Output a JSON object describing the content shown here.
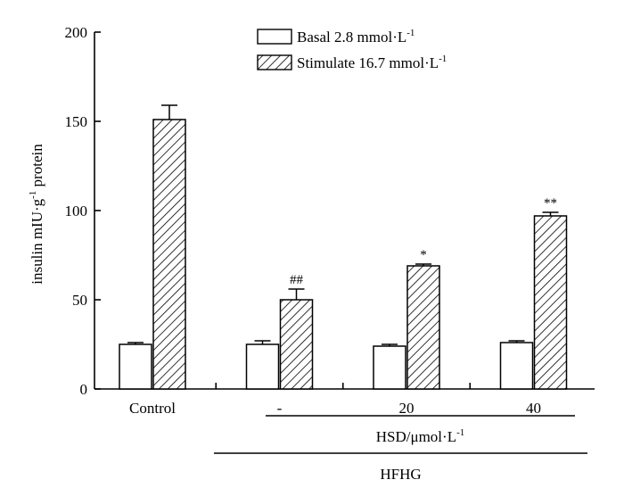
{
  "chart_data": {
    "type": "bar",
    "categories": [
      "Control",
      "-",
      "20",
      "40"
    ],
    "series": [
      {
        "name": "Basal 2.8 mmol·L",
        "name_sup": "-1",
        "pattern": "none",
        "values": [
          25,
          25,
          24,
          26
        ],
        "errors": [
          1,
          2,
          1,
          1
        ]
      },
      {
        "name": "Stimulate 16.7 mmol·L",
        "name_sup": "-1",
        "pattern": "hatch",
        "values": [
          151,
          50,
          69,
          97
        ],
        "errors": [
          8,
          6,
          1,
          2
        ]
      }
    ],
    "annotations": [
      "",
      "##",
      "*",
      "**"
    ],
    "ylabel": {
      "pre": "insulin mIU·g",
      "sup": "-1",
      "post": " protein"
    },
    "ylim": [
      0,
      200
    ],
    "yticks": [
      0,
      50,
      100,
      150,
      200
    ],
    "grid": false,
    "legend_position": "top-right",
    "group_labels": [
      {
        "text": "HSD/μmol·L",
        "sup": "-1",
        "from": 1,
        "to": 3
      },
      {
        "text": "HFHG",
        "sup": "",
        "from": 1,
        "to": 3
      }
    ]
  }
}
